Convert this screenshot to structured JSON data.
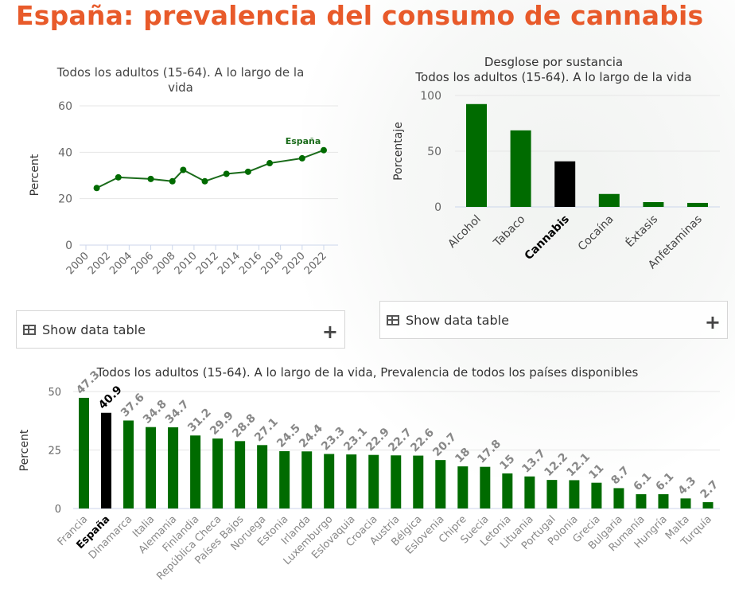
{
  "page_title": "España: prevalencia del consumo de cannabis",
  "show_table_label": "Show data table",
  "colors": {
    "title": "#e85a2a",
    "bar": "#006b00",
    "highlight": "#000000",
    "line": "#1a6b1a"
  },
  "icons": {
    "table": "table-icon",
    "expand": "plus-icon"
  },
  "chart_data": [
    {
      "type": "line",
      "title": "Todos los adultos (15-64). A lo largo de la vida",
      "ylabel": "Percent",
      "ylim": [
        0,
        60
      ],
      "yticks": [
        0,
        20,
        40,
        60
      ],
      "xlim": [
        2000,
        2022
      ],
      "xticks": [
        2000,
        2002,
        2004,
        2006,
        2008,
        2010,
        2012,
        2014,
        2016,
        2018,
        2020,
        2022
      ],
      "grid": true,
      "series": [
        {
          "name": "España",
          "x": [
            2001,
            2003,
            2006,
            2008,
            2009,
            2011,
            2013,
            2015,
            2017,
            2020,
            2022
          ],
          "values": [
            24.6,
            29.2,
            28.5,
            27.5,
            32.4,
            27.5,
            30.7,
            31.6,
            35.3,
            37.4,
            40.9
          ]
        }
      ]
    },
    {
      "type": "bar",
      "title": "Desglose por sustancia",
      "subtitle": "Todos los adultos (15-64). A lo largo de la vida",
      "ylabel": "Porcentaje",
      "ylim": [
        0,
        100
      ],
      "yticks": [
        0,
        50,
        100
      ],
      "grid": true,
      "categories": [
        "Alcohol",
        "Tabaco",
        "Cannabis",
        "Cocaína",
        "Éxtasis",
        "Anfetaminas"
      ],
      "values": [
        92.3,
        68.7,
        40.9,
        11.6,
        4.3,
        3.6
      ],
      "highlight": "Cannabis"
    },
    {
      "type": "bar",
      "title": "Todos los adultos (15-64). A lo largo de la vida, Prevalencia de todos los países disponibles",
      "ylabel": "Percent",
      "ylim": [
        0,
        50
      ],
      "yticks": [
        0,
        25,
        50
      ],
      "grid": true,
      "categories": [
        "Francia",
        "España",
        "Dinamarca",
        "Italia",
        "Alemania",
        "Finlandia",
        "República Checa",
        "Países Bajos",
        "Noruega",
        "Estonia",
        "Irlanda",
        "Luxemburgo",
        "Eslovaquia",
        "Croacia",
        "Austria",
        "Bélgica",
        "Eslovenia",
        "Chipre",
        "Suecia",
        "Letonia",
        "Lituania",
        "Portugal",
        "Polonia",
        "Grecia",
        "Bulgaria",
        "Rumanía",
        "Hungría",
        "Malta",
        "Turquía"
      ],
      "values": [
        47.3,
        40.9,
        37.6,
        34.8,
        34.7,
        31.2,
        29.9,
        28.8,
        27.1,
        24.5,
        24.4,
        23.3,
        23.1,
        22.9,
        22.7,
        22.6,
        20.7,
        18,
        17.8,
        15,
        13.7,
        12.2,
        12.1,
        11,
        8.7,
        6.1,
        6.1,
        4.3,
        2.7
      ],
      "data_labels": [
        "47.3",
        "40.9",
        "37.6",
        "34.8",
        "34.7",
        "31.2",
        "29.9",
        "28.8",
        "27.1",
        "24.5",
        "24.4",
        "23.3",
        "23.1",
        "22.9",
        "22.7",
        "22.6",
        "20.7",
        "18",
        "17.8",
        "15",
        "13.7",
        "12.2",
        "12.1",
        "11",
        "8.7",
        "6.1",
        "6.1",
        "4.3",
        "2.7"
      ],
      "highlight": "España"
    }
  ]
}
